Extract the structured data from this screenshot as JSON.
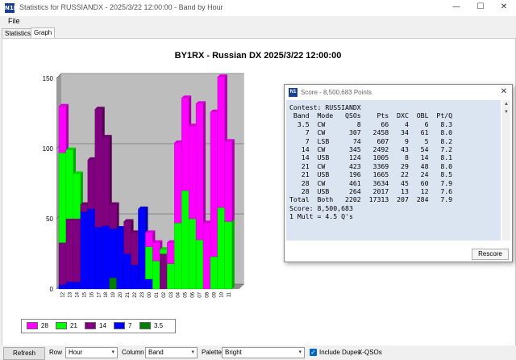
{
  "window": {
    "title": "Statistics for RUSSIANDX - 2025/3/22 12:00:00 - Band by Hour",
    "app_icon": "N1MM",
    "minimize": "—",
    "maximize": "☐",
    "close": "✕"
  },
  "menu": {
    "file": "File"
  },
  "tabs": [
    "Statistics",
    "Graph"
  ],
  "chart_data": {
    "type": "bar",
    "stacked": true,
    "title": "BY1RX - Russian DX 2025/3/22 12:00:00",
    "ylim": [
      0,
      150
    ],
    "yticks": [
      "0",
      "50",
      "100",
      "150"
    ],
    "categories": [
      "12",
      "13",
      "14",
      "15",
      "16",
      "17",
      "18",
      "19",
      "20",
      "21",
      "22",
      "23",
      "00",
      "01",
      "02",
      "03",
      "04",
      "05",
      "06",
      "07",
      "08",
      "09",
      "10",
      "11"
    ],
    "series": [
      {
        "name": "3.5",
        "color": "#008000",
        "values": [
          0,
          0,
          0,
          0,
          0,
          0,
          0,
          8,
          0,
          0,
          0,
          0,
          0,
          0,
          0,
          0,
          0,
          0,
          0,
          0,
          0,
          0,
          0,
          0
        ]
      },
      {
        "name": "7",
        "color": "#0000ff",
        "values": [
          3,
          5,
          5,
          55,
          57,
          44,
          45,
          35,
          43,
          25,
          17,
          57,
          7,
          0,
          0,
          0,
          0,
          0,
          0,
          0,
          0,
          0,
          0,
          0
        ]
      },
      {
        "name": "14",
        "color": "#800080",
        "values": [
          30,
          45,
          45,
          5,
          35,
          84,
          63,
          17,
          0,
          23,
          23,
          0,
          0,
          0,
          25,
          0,
          0,
          0,
          0,
          0,
          0,
          0,
          0,
          0
        ]
      },
      {
        "name": "21",
        "color": "#00ff00",
        "values": [
          64,
          49,
          32,
          0,
          0,
          0,
          0,
          0,
          0,
          0,
          0,
          0,
          23,
          20,
          3,
          18,
          47,
          70,
          50,
          35,
          0,
          23,
          58,
          48
        ]
      },
      {
        "name": "28",
        "color": "#ff00ff",
        "values": [
          33,
          0,
          0,
          0,
          0,
          0,
          0,
          0,
          0,
          0,
          0,
          0,
          10,
          13,
          0,
          15,
          57,
          66,
          66,
          97,
          47,
          103,
          93,
          57
        ]
      }
    ],
    "legend_position": "bottom-left"
  },
  "legend": {
    "items": [
      {
        "label": "28",
        "color": "#ff00ff"
      },
      {
        "label": "21",
        "color": "#00ff00"
      },
      {
        "label": "14",
        "color": "#800080"
      },
      {
        "label": "7",
        "color": "#0000ff"
      },
      {
        "label": "3.5",
        "color": "#008000"
      }
    ]
  },
  "score_window": {
    "title": "Score - 8,500,683 Points",
    "contest": "Contest: RUSSIANDX",
    "headers": [
      "Band",
      "Mode",
      "QSOs",
      "Pts",
      "DXC",
      "OBL",
      "Pt/Q"
    ],
    "rows": [
      [
        "3.5",
        "CW",
        "8",
        "66",
        "4",
        "6",
        "8.3"
      ],
      [
        "7",
        "CW",
        "307",
        "2458",
        "34",
        "61",
        "8.0"
      ],
      [
        "7",
        "LSB",
        "74",
        "607",
        "9",
        "5",
        "8.2"
      ],
      [
        "14",
        "CW",
        "345",
        "2492",
        "43",
        "54",
        "7.2"
      ],
      [
        "14",
        "USB",
        "124",
        "1005",
        "8",
        "14",
        "8.1"
      ],
      [
        "21",
        "CW",
        "423",
        "3369",
        "29",
        "48",
        "8.0"
      ],
      [
        "21",
        "USB",
        "196",
        "1665",
        "22",
        "24",
        "8.5"
      ],
      [
        "28",
        "CW",
        "461",
        "3634",
        "45",
        "60",
        "7.9"
      ],
      [
        "28",
        "USB",
        "264",
        "2017",
        "13",
        "12",
        "7.6"
      ]
    ],
    "total": [
      "Total",
      "Both",
      "2202",
      "17313",
      "207",
      "284",
      "7.9"
    ],
    "score_line": "Score: 8,500,683",
    "mult_line": "1 Mult = 4.5 Q's",
    "rescore": "Rescore"
  },
  "bottom": {
    "refresh": "Refresh",
    "row_label": "Row",
    "row_value": "Hour",
    "column_label": "Column",
    "column_value": "Band",
    "palette_label": "Palette",
    "palette_value": "Bright",
    "include_dupes": "Include Dupes",
    "xqsos": "X-QSOs"
  }
}
